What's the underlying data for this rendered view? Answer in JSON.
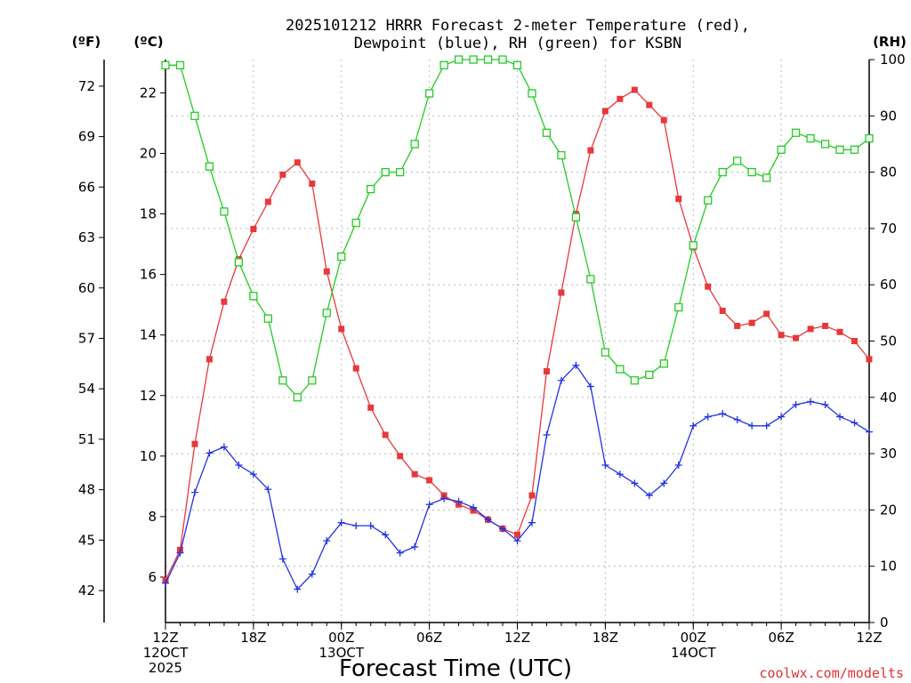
{
  "chart_data": {
    "type": "line",
    "title_lines": [
      "2025101212 HRRR Forecast 2-meter Temperature (red),",
      "Dewpoint (blue), RH (green) for KSBN"
    ],
    "units": {
      "fahrenheit": "(ºF)",
      "celsius": "(ºC)",
      "rh": "(RH)"
    },
    "xlabel": "Forecast Time (UTC)",
    "credit": "coolwx.com/modelts",
    "colors": {
      "temperature": "#e8383a",
      "dewpoint": "#2233e0",
      "rh": "#22cc22",
      "axis": "#000000",
      "grid": "#b8b8b8",
      "credit": "#e03030"
    },
    "x_range_hours": [
      0,
      48
    ],
    "x_ticks": [
      {
        "hour": 0,
        "lines": [
          "12Z",
          "12OCT",
          "2025"
        ]
      },
      {
        "hour": 6,
        "lines": [
          "18Z"
        ]
      },
      {
        "hour": 12,
        "lines": [
          "00Z",
          "13OCT"
        ]
      },
      {
        "hour": 18,
        "lines": [
          "06Z"
        ]
      },
      {
        "hour": 24,
        "lines": [
          "12Z"
        ]
      },
      {
        "hour": 30,
        "lines": [
          "18Z"
        ]
      },
      {
        "hour": 36,
        "lines": [
          "00Z",
          "14OCT"
        ]
      },
      {
        "hour": 42,
        "lines": [
          "06Z"
        ]
      },
      {
        "hour": 48,
        "lines": [
          "12Z"
        ]
      }
    ],
    "celsius_range": [
      4.5,
      23.1
    ],
    "celsius_ticks": [
      6,
      8,
      10,
      12,
      14,
      16,
      18,
      20,
      22
    ],
    "fahrenheit_ticks": [
      42,
      45,
      48,
      51,
      54,
      57,
      60,
      63,
      66,
      69,
      72
    ],
    "rh_range": [
      0,
      100
    ],
    "rh_ticks": [
      0,
      10,
      20,
      30,
      40,
      50,
      60,
      70,
      80,
      90,
      100
    ],
    "series": [
      {
        "name": "Temperature",
        "unit": "C",
        "marker": "filled-square",
        "values": [
          5.9,
          6.9,
          10.4,
          13.2,
          15.1,
          16.5,
          17.5,
          18.4,
          19.3,
          19.7,
          19.0,
          16.1,
          14.2,
          12.9,
          11.6,
          10.7,
          10.0,
          9.4,
          9.2,
          8.7,
          8.4,
          8.2,
          7.9,
          7.6,
          7.4,
          8.7,
          12.8,
          15.4,
          18.0,
          20.1,
          21.4,
          21.8,
          22.1,
          21.6,
          21.1,
          18.5,
          16.9,
          15.6,
          14.8,
          14.3,
          14.4,
          14.7,
          14.0,
          13.9,
          14.2,
          14.3,
          14.1,
          13.8,
          13.2
        ]
      },
      {
        "name": "Dewpoint",
        "unit": "C",
        "marker": "plus",
        "values": [
          5.8,
          6.8,
          8.8,
          10.1,
          10.3,
          9.7,
          9.4,
          8.9,
          6.6,
          5.6,
          6.1,
          7.2,
          7.8,
          7.7,
          7.7,
          7.4,
          6.8,
          7.0,
          8.4,
          8.6,
          8.5,
          8.3,
          7.9,
          7.6,
          7.2,
          7.8,
          10.7,
          12.5,
          13.0,
          12.3,
          9.7,
          9.4,
          9.1,
          8.7,
          9.1,
          9.7,
          11.0,
          11.3,
          11.4,
          11.2,
          11.0,
          11.0,
          11.3,
          11.7,
          11.8,
          11.7,
          11.3,
          11.1,
          10.8
        ]
      },
      {
        "name": "Relative Humidity",
        "unit": "%",
        "marker": "open-square",
        "values": [
          99,
          99,
          90,
          81,
          73,
          64,
          58,
          54,
          43,
          40,
          43,
          55,
          65,
          71,
          77,
          80,
          80,
          85,
          94,
          99,
          100,
          100,
          100,
          100,
          99,
          94,
          87,
          83,
          72,
          61,
          48,
          45,
          43,
          44,
          46,
          56,
          67,
          75,
          80,
          82,
          80,
          79,
          84,
          87,
          86,
          85,
          84,
          84,
          86
        ]
      }
    ]
  }
}
